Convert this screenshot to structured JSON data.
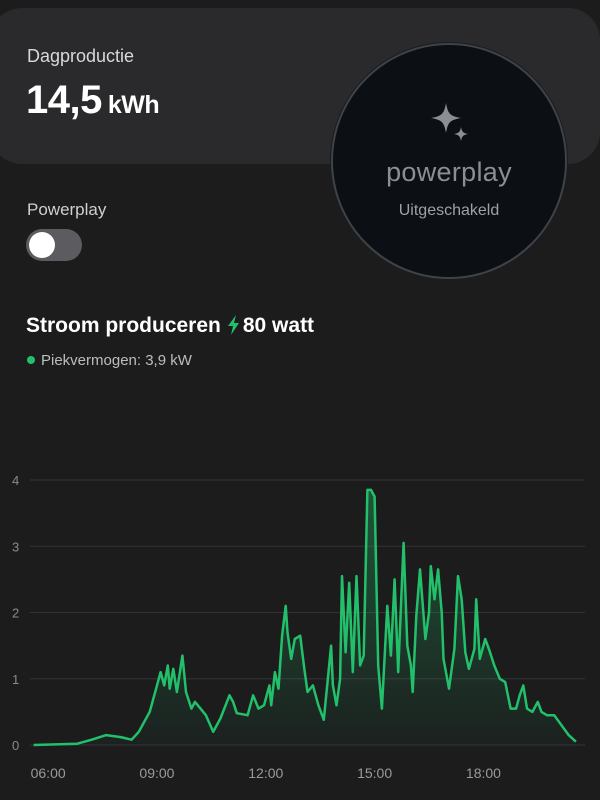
{
  "summary": {
    "label": "Dagproductie",
    "value": "14,5",
    "unit": "kWh"
  },
  "powerplay_badge": {
    "brand": "powerplay",
    "status": "Uitgeschakeld",
    "icon": "sparkle-icon"
  },
  "toggle": {
    "label": "Powerplay",
    "state": "off"
  },
  "production": {
    "title": "Stroom produceren",
    "watts": "80 watt",
    "peak": "Piekvermogen: 3,9 kW"
  },
  "colors": {
    "accent": "#22c06a",
    "background": "#1c1c1d",
    "card": "#2a2a2c"
  },
  "chart_data": {
    "type": "area",
    "ylim": [
      0,
      4
    ],
    "yticks": [
      "0",
      "1",
      "2",
      "3",
      "4"
    ],
    "xticks": [
      "06:00",
      "09:00",
      "12:00",
      "15:00",
      "18:00"
    ],
    "xlim": [
      5.5,
      20.8
    ],
    "grid": true,
    "series": [
      {
        "color": "#22c06a",
        "points": [
          [
            5.6,
            0.0
          ],
          [
            6.8,
            0.02
          ],
          [
            7.2,
            0.08
          ],
          [
            7.6,
            0.15
          ],
          [
            8.0,
            0.12
          ],
          [
            8.3,
            0.08
          ],
          [
            8.5,
            0.2
          ],
          [
            8.8,
            0.5
          ],
          [
            9.0,
            0.9
          ],
          [
            9.1,
            1.1
          ],
          [
            9.2,
            0.9
          ],
          [
            9.3,
            1.2
          ],
          [
            9.35,
            0.85
          ],
          [
            9.45,
            1.15
          ],
          [
            9.55,
            0.8
          ],
          [
            9.7,
            1.35
          ],
          [
            9.8,
            0.8
          ],
          [
            9.95,
            0.55
          ],
          [
            10.05,
            0.65
          ],
          [
            10.2,
            0.55
          ],
          [
            10.35,
            0.45
          ],
          [
            10.55,
            0.2
          ],
          [
            10.75,
            0.4
          ],
          [
            11.0,
            0.75
          ],
          [
            11.1,
            0.65
          ],
          [
            11.2,
            0.48
          ],
          [
            11.5,
            0.45
          ],
          [
            11.65,
            0.75
          ],
          [
            11.8,
            0.55
          ],
          [
            11.95,
            0.6
          ],
          [
            12.1,
            0.9
          ],
          [
            12.15,
            0.6
          ],
          [
            12.25,
            1.1
          ],
          [
            12.35,
            0.85
          ],
          [
            12.45,
            1.65
          ],
          [
            12.55,
            2.1
          ],
          [
            12.6,
            1.7
          ],
          [
            12.7,
            1.3
          ],
          [
            12.8,
            1.6
          ],
          [
            12.95,
            1.65
          ],
          [
            13.05,
            1.2
          ],
          [
            13.15,
            0.8
          ],
          [
            13.3,
            0.9
          ],
          [
            13.45,
            0.6
          ],
          [
            13.6,
            0.38
          ],
          [
            13.8,
            1.5
          ],
          [
            13.85,
            0.9
          ],
          [
            13.95,
            0.6
          ],
          [
            14.05,
            1.0
          ],
          [
            14.1,
            2.55
          ],
          [
            14.2,
            1.4
          ],
          [
            14.3,
            2.45
          ],
          [
            14.4,
            1.1
          ],
          [
            14.5,
            2.55
          ],
          [
            14.6,
            1.2
          ],
          [
            14.7,
            1.35
          ],
          [
            14.8,
            3.85
          ],
          [
            14.9,
            3.85
          ],
          [
            15.0,
            3.75
          ],
          [
            15.1,
            1.2
          ],
          [
            15.2,
            0.55
          ],
          [
            15.35,
            2.1
          ],
          [
            15.45,
            1.35
          ],
          [
            15.55,
            2.5
          ],
          [
            15.65,
            1.1
          ],
          [
            15.8,
            3.05
          ],
          [
            15.9,
            1.5
          ],
          [
            16.0,
            1.2
          ],
          [
            16.05,
            0.8
          ],
          [
            16.15,
            1.95
          ],
          [
            16.25,
            2.65
          ],
          [
            16.4,
            1.6
          ],
          [
            16.5,
            2.0
          ],
          [
            16.55,
            2.7
          ],
          [
            16.65,
            2.2
          ],
          [
            16.75,
            2.65
          ],
          [
            16.85,
            2.0
          ],
          [
            16.9,
            1.3
          ],
          [
            17.05,
            0.85
          ],
          [
            17.2,
            1.45
          ],
          [
            17.3,
            2.55
          ],
          [
            17.4,
            2.2
          ],
          [
            17.5,
            1.4
          ],
          [
            17.6,
            1.15
          ],
          [
            17.75,
            1.45
          ],
          [
            17.8,
            2.2
          ],
          [
            17.9,
            1.3
          ],
          [
            18.05,
            1.6
          ],
          [
            18.15,
            1.45
          ],
          [
            18.3,
            1.2
          ],
          [
            18.45,
            1.0
          ],
          [
            18.6,
            0.95
          ],
          [
            18.75,
            0.55
          ],
          [
            18.9,
            0.55
          ],
          [
            19.0,
            0.75
          ],
          [
            19.1,
            0.9
          ],
          [
            19.2,
            0.55
          ],
          [
            19.35,
            0.5
          ],
          [
            19.5,
            0.65
          ],
          [
            19.6,
            0.5
          ],
          [
            19.75,
            0.45
          ],
          [
            19.95,
            0.45
          ],
          [
            20.15,
            0.3
          ],
          [
            20.35,
            0.15
          ],
          [
            20.55,
            0.05
          ]
        ]
      }
    ]
  }
}
